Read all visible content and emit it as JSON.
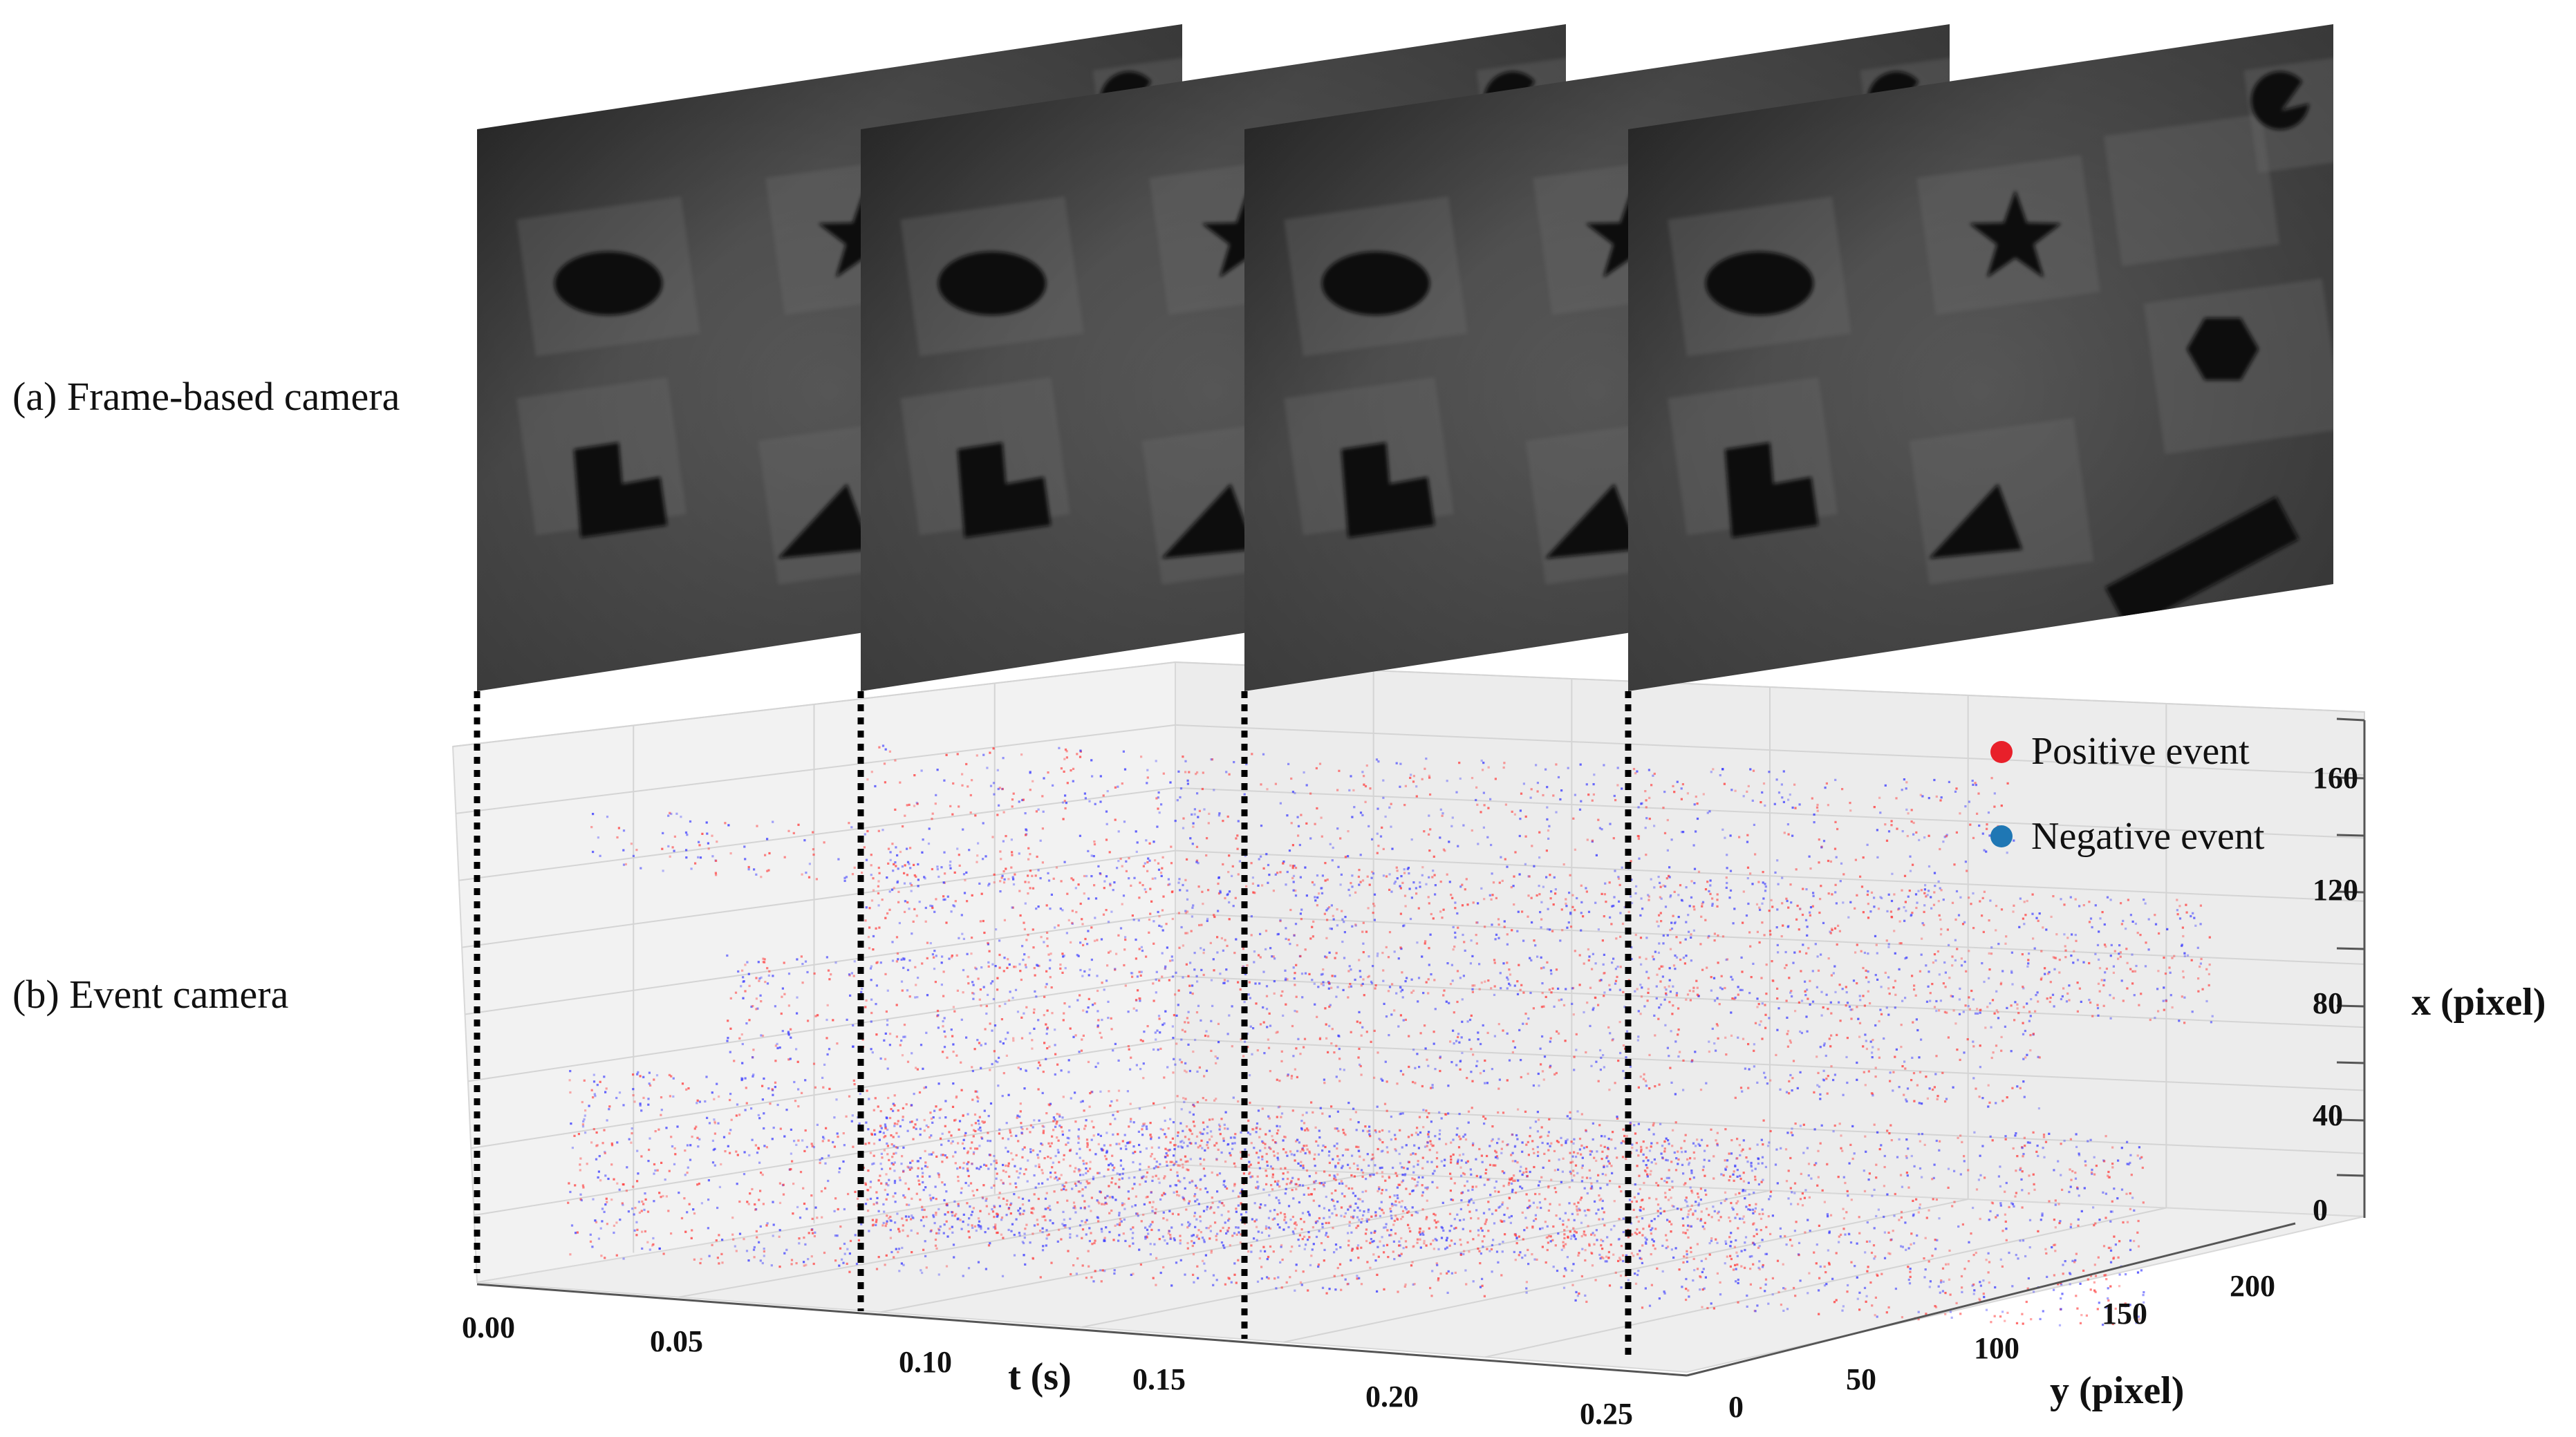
{
  "labels": {
    "frame": "(a) Frame-based camera",
    "event": "(b) Event camera"
  },
  "legend": {
    "positive": "Positive event",
    "negative": "Negative event"
  },
  "colors": {
    "positive": "#e8202a",
    "negative": "#1f77b4",
    "positive_pt": "#ff3b3b",
    "negative_pt": "#3a3aff"
  },
  "axes": {
    "t_title": "t (s)",
    "y_title": "y (pixel)",
    "x_title": "x (pixel)",
    "t_ticks": [
      "0.00",
      "0.05",
      "0.10",
      "0.15",
      "0.20",
      "0.25"
    ],
    "y_ticks": [
      "0",
      "50",
      "100",
      "150",
      "200"
    ],
    "x_ticks": [
      "0",
      "40",
      "80",
      "120",
      "160"
    ]
  },
  "frames": [
    {
      "t": 0.0
    },
    {
      "t": 0.083
    },
    {
      "t": 0.166
    },
    {
      "t": 0.25
    }
  ],
  "shapes": [
    "ellipse",
    "star",
    "l-shape",
    "triangle",
    "hexagon",
    "bar",
    "pacman"
  ],
  "event_bands": [
    {
      "x_range": [
        150,
        170
      ]
    },
    {
      "x_range": [
        120,
        140
      ]
    },
    {
      "x_range": [
        90,
        105
      ]
    },
    {
      "x_range": [
        70,
        85
      ]
    },
    {
      "x_range": [
        5,
        30
      ]
    }
  ]
}
